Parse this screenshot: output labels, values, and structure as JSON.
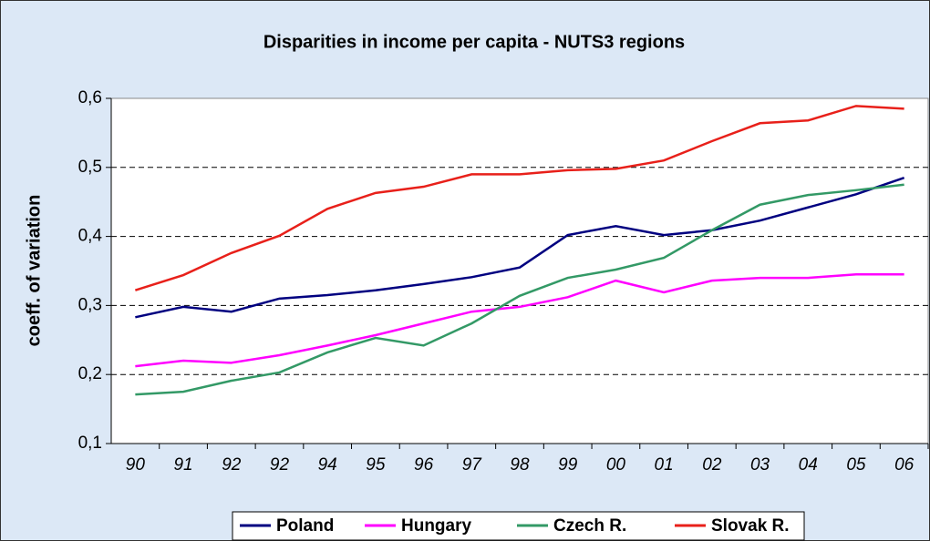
{
  "chart_data": {
    "type": "line",
    "title": "Disparities in income per capita - NUTS3 regions",
    "y_label": "coeff. of variation",
    "categories": [
      "90",
      "91",
      "92",
      "92",
      "94",
      "95",
      "96",
      "97",
      "98",
      "99",
      "00",
      "01",
      "02",
      "03",
      "04",
      "05",
      "06"
    ],
    "series": [
      {
        "name": "Poland",
        "color": "#000080",
        "values": [
          0.283,
          0.298,
          0.291,
          0.31,
          0.315,
          0.322,
          0.331,
          0.341,
          0.355,
          0.402,
          0.415,
          0.402,
          0.409,
          0.423,
          0.442,
          0.461,
          0.485
        ]
      },
      {
        "name": "Hungary",
        "color": "#ff00ff",
        "values": [
          0.212,
          0.22,
          0.217,
          0.228,
          0.242,
          0.257,
          0.274,
          0.291,
          0.298,
          0.312,
          0.336,
          0.319,
          0.336,
          0.34,
          0.34,
          0.345,
          0.345
        ]
      },
      {
        "name": "Czech R.",
        "color": "#339966",
        "values": [
          0.171,
          0.175,
          0.191,
          0.203,
          0.232,
          0.253,
          0.242,
          0.274,
          0.314,
          0.34,
          0.352,
          0.369,
          0.409,
          0.446,
          0.46,
          0.467,
          0.475
        ]
      },
      {
        "name": "Slovak R.",
        "color": "#e8201a",
        "values": [
          0.322,
          0.344,
          0.376,
          0.401,
          0.44,
          0.463,
          0.472,
          0.49,
          0.49,
          0.496,
          0.498,
          0.51,
          0.538,
          0.564,
          0.568,
          0.589,
          0.585
        ]
      }
    ],
    "ylim": [
      0.1,
      0.6
    ],
    "yticks": [
      {
        "value": 0.1,
        "label": "0,1"
      },
      {
        "value": 0.2,
        "label": "0,2"
      },
      {
        "value": 0.3,
        "label": "0,3"
      },
      {
        "value": 0.4,
        "label": "0,4"
      },
      {
        "value": 0.5,
        "label": "0,5"
      },
      {
        "value": 0.6,
        "label": "0,6"
      }
    ],
    "grid": true,
    "legend": "bottom"
  }
}
